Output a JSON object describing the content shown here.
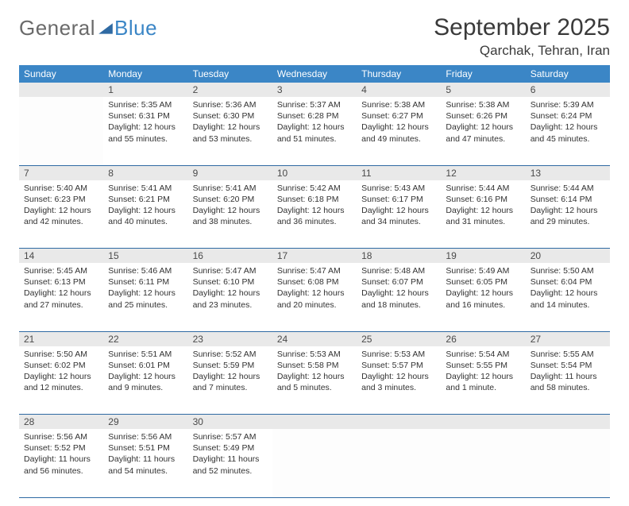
{
  "logo": {
    "part1": "General",
    "part2": "Blue",
    "color_part2": "#3b86c6",
    "color_part1": "#6a6a6a",
    "triangle_fill": "#2f6aa3"
  },
  "title": "September 2025",
  "location": "Qarchak, Tehran, Iran",
  "colors": {
    "header_bg": "#3b86c6",
    "header_fg": "#ffffff",
    "daynum_bg": "#e9e9e9",
    "rule": "#2f6aa3",
    "text": "#323232"
  },
  "weekdays": [
    "Sunday",
    "Monday",
    "Tuesday",
    "Wednesday",
    "Thursday",
    "Friday",
    "Saturday"
  ],
  "weeks": [
    [
      null,
      {
        "n": "1",
        "sr": "Sunrise: 5:35 AM",
        "ss": "Sunset: 6:31 PM",
        "d1": "Daylight: 12 hours",
        "d2": "and 55 minutes."
      },
      {
        "n": "2",
        "sr": "Sunrise: 5:36 AM",
        "ss": "Sunset: 6:30 PM",
        "d1": "Daylight: 12 hours",
        "d2": "and 53 minutes."
      },
      {
        "n": "3",
        "sr": "Sunrise: 5:37 AM",
        "ss": "Sunset: 6:28 PM",
        "d1": "Daylight: 12 hours",
        "d2": "and 51 minutes."
      },
      {
        "n": "4",
        "sr": "Sunrise: 5:38 AM",
        "ss": "Sunset: 6:27 PM",
        "d1": "Daylight: 12 hours",
        "d2": "and 49 minutes."
      },
      {
        "n": "5",
        "sr": "Sunrise: 5:38 AM",
        "ss": "Sunset: 6:26 PM",
        "d1": "Daylight: 12 hours",
        "d2": "and 47 minutes."
      },
      {
        "n": "6",
        "sr": "Sunrise: 5:39 AM",
        "ss": "Sunset: 6:24 PM",
        "d1": "Daylight: 12 hours",
        "d2": "and 45 minutes."
      }
    ],
    [
      {
        "n": "7",
        "sr": "Sunrise: 5:40 AM",
        "ss": "Sunset: 6:23 PM",
        "d1": "Daylight: 12 hours",
        "d2": "and 42 minutes."
      },
      {
        "n": "8",
        "sr": "Sunrise: 5:41 AM",
        "ss": "Sunset: 6:21 PM",
        "d1": "Daylight: 12 hours",
        "d2": "and 40 minutes."
      },
      {
        "n": "9",
        "sr": "Sunrise: 5:41 AM",
        "ss": "Sunset: 6:20 PM",
        "d1": "Daylight: 12 hours",
        "d2": "and 38 minutes."
      },
      {
        "n": "10",
        "sr": "Sunrise: 5:42 AM",
        "ss": "Sunset: 6:18 PM",
        "d1": "Daylight: 12 hours",
        "d2": "and 36 minutes."
      },
      {
        "n": "11",
        "sr": "Sunrise: 5:43 AM",
        "ss": "Sunset: 6:17 PM",
        "d1": "Daylight: 12 hours",
        "d2": "and 34 minutes."
      },
      {
        "n": "12",
        "sr": "Sunrise: 5:44 AM",
        "ss": "Sunset: 6:16 PM",
        "d1": "Daylight: 12 hours",
        "d2": "and 31 minutes."
      },
      {
        "n": "13",
        "sr": "Sunrise: 5:44 AM",
        "ss": "Sunset: 6:14 PM",
        "d1": "Daylight: 12 hours",
        "d2": "and 29 minutes."
      }
    ],
    [
      {
        "n": "14",
        "sr": "Sunrise: 5:45 AM",
        "ss": "Sunset: 6:13 PM",
        "d1": "Daylight: 12 hours",
        "d2": "and 27 minutes."
      },
      {
        "n": "15",
        "sr": "Sunrise: 5:46 AM",
        "ss": "Sunset: 6:11 PM",
        "d1": "Daylight: 12 hours",
        "d2": "and 25 minutes."
      },
      {
        "n": "16",
        "sr": "Sunrise: 5:47 AM",
        "ss": "Sunset: 6:10 PM",
        "d1": "Daylight: 12 hours",
        "d2": "and 23 minutes."
      },
      {
        "n": "17",
        "sr": "Sunrise: 5:47 AM",
        "ss": "Sunset: 6:08 PM",
        "d1": "Daylight: 12 hours",
        "d2": "and 20 minutes."
      },
      {
        "n": "18",
        "sr": "Sunrise: 5:48 AM",
        "ss": "Sunset: 6:07 PM",
        "d1": "Daylight: 12 hours",
        "d2": "and 18 minutes."
      },
      {
        "n": "19",
        "sr": "Sunrise: 5:49 AM",
        "ss": "Sunset: 6:05 PM",
        "d1": "Daylight: 12 hours",
        "d2": "and 16 minutes."
      },
      {
        "n": "20",
        "sr": "Sunrise: 5:50 AM",
        "ss": "Sunset: 6:04 PM",
        "d1": "Daylight: 12 hours",
        "d2": "and 14 minutes."
      }
    ],
    [
      {
        "n": "21",
        "sr": "Sunrise: 5:50 AM",
        "ss": "Sunset: 6:02 PM",
        "d1": "Daylight: 12 hours",
        "d2": "and 12 minutes."
      },
      {
        "n": "22",
        "sr": "Sunrise: 5:51 AM",
        "ss": "Sunset: 6:01 PM",
        "d1": "Daylight: 12 hours",
        "d2": "and 9 minutes."
      },
      {
        "n": "23",
        "sr": "Sunrise: 5:52 AM",
        "ss": "Sunset: 5:59 PM",
        "d1": "Daylight: 12 hours",
        "d2": "and 7 minutes."
      },
      {
        "n": "24",
        "sr": "Sunrise: 5:53 AM",
        "ss": "Sunset: 5:58 PM",
        "d1": "Daylight: 12 hours",
        "d2": "and 5 minutes."
      },
      {
        "n": "25",
        "sr": "Sunrise: 5:53 AM",
        "ss": "Sunset: 5:57 PM",
        "d1": "Daylight: 12 hours",
        "d2": "and 3 minutes."
      },
      {
        "n": "26",
        "sr": "Sunrise: 5:54 AM",
        "ss": "Sunset: 5:55 PM",
        "d1": "Daylight: 12 hours",
        "d2": "and 1 minute."
      },
      {
        "n": "27",
        "sr": "Sunrise: 5:55 AM",
        "ss": "Sunset: 5:54 PM",
        "d1": "Daylight: 11 hours",
        "d2": "and 58 minutes."
      }
    ],
    [
      {
        "n": "28",
        "sr": "Sunrise: 5:56 AM",
        "ss": "Sunset: 5:52 PM",
        "d1": "Daylight: 11 hours",
        "d2": "and 56 minutes."
      },
      {
        "n": "29",
        "sr": "Sunrise: 5:56 AM",
        "ss": "Sunset: 5:51 PM",
        "d1": "Daylight: 11 hours",
        "d2": "and 54 minutes."
      },
      {
        "n": "30",
        "sr": "Sunrise: 5:57 AM",
        "ss": "Sunset: 5:49 PM",
        "d1": "Daylight: 11 hours",
        "d2": "and 52 minutes."
      },
      null,
      null,
      null,
      null
    ]
  ]
}
